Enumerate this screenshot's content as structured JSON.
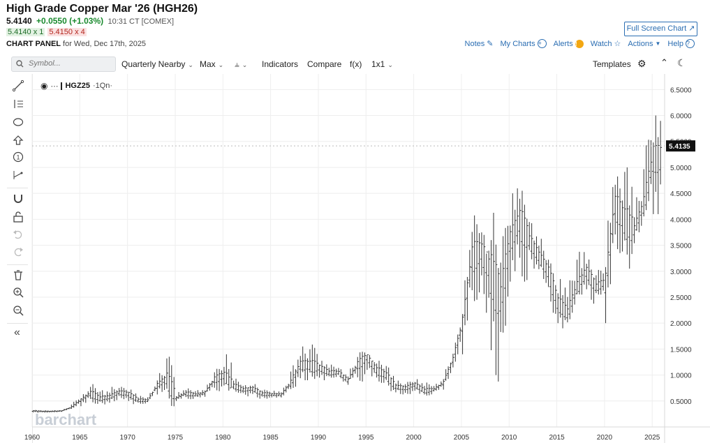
{
  "header": {
    "title": "High Grade Copper Mar '26 (HGH26)",
    "last": "5.4140",
    "change": "+0.0550 (+1.03%)",
    "time": "10:31 CT [COMEX]",
    "bid": "5.4140 x 1",
    "ask": "5.4150 x 4",
    "panel_label": "CHART PANEL",
    "panel_date": "for Wed, Dec 17th, 2025",
    "fullscreen_label": "Full Screen Chart",
    "links": {
      "notes": "Notes",
      "mycharts": "My Charts",
      "alerts": "Alerts",
      "watch": "Watch",
      "actions": "Actions",
      "help": "Help"
    }
  },
  "toolbar": {
    "search_placeholder": "Symbol...",
    "aggregation": "Quarterly Nearby",
    "period": "Max",
    "indicators": "Indicators",
    "compare": "Compare",
    "fx": "f(x)",
    "layout": "1x1",
    "templates": "Templates"
  },
  "legend": {
    "symbol": "HGZ25",
    "period": "1Qn"
  },
  "watermark": "barchart",
  "price_label": "5.4135",
  "colors": {
    "accent": "#2a6db2",
    "up": "#1a8a2e",
    "down": "#b3261e",
    "bars": "#333333"
  },
  "sidebar_icons": [
    "draw-line-icon",
    "trend-tools-icon",
    "shapes-icon",
    "arrow-up-icon",
    "annotation-icon",
    "measure-icon",
    "magnet-icon",
    "unlock-icon",
    "undo-icon",
    "redo-icon",
    "trash-icon",
    "zoom-in-icon",
    "zoom-out-icon",
    "collapse-icon"
  ],
  "chart_data": {
    "type": "ohlc",
    "symbol": "HGZ25",
    "y_axis_ticks": [
      "6.5000",
      "6.0000",
      "5.5000",
      "5.0000",
      "4.5000",
      "4.0000",
      "3.5000",
      "3.0000",
      "2.5000",
      "2.0000",
      "1.5000",
      "1.0000",
      "0.5000"
    ],
    "ylim": [
      0.0,
      6.8
    ],
    "x_axis_ticks": [
      "1960",
      "1965",
      "1970",
      "1975",
      "1980",
      "1985",
      "1990",
      "1995",
      "2000",
      "2005",
      "2010",
      "2015",
      "2020",
      "2025"
    ],
    "xlim": [
      1960.0,
      2026.3
    ],
    "last_price": 5.4135,
    "series": [
      {
        "x": [
          1960,
          1961,
          1962,
          1963,
          1964,
          1965,
          1966,
          1967,
          1968,
          1969,
          1970,
          1971,
          1972,
          1973,
          1974,
          1975,
          1976,
          1977,
          1978,
          1979,
          1980,
          1981,
          1982,
          1983,
          1984,
          1985,
          1986,
          1987,
          1988,
          1989,
          1990,
          1991,
          1992,
          1993,
          1994,
          1995,
          1996,
          1997,
          1998,
          1999,
          2000,
          2001,
          2002,
          2003,
          2004,
          2005,
          2006,
          2007,
          2008,
          2009,
          2010,
          2011,
          2012,
          2013,
          2014,
          2015,
          2016,
          2017,
          2018,
          2019,
          2020,
          2021,
          2022,
          2023,
          2024,
          2025
        ],
        "value": [
          0.31,
          0.3,
          0.3,
          0.31,
          0.38,
          0.52,
          0.65,
          0.55,
          0.58,
          0.67,
          0.64,
          0.52,
          0.51,
          0.8,
          0.95,
          0.56,
          0.65,
          0.62,
          0.66,
          0.92,
          1.0,
          0.8,
          0.72,
          0.74,
          0.64,
          0.63,
          0.62,
          0.85,
          1.2,
          1.2,
          1.15,
          1.05,
          1.05,
          0.9,
          1.2,
          1.35,
          1.1,
          1.0,
          0.78,
          0.75,
          0.82,
          0.7,
          0.72,
          0.85,
          1.3,
          2.0,
          3.3,
          3.4,
          3.0,
          2.5,
          3.6,
          4.0,
          3.6,
          3.3,
          3.0,
          2.4,
          2.2,
          2.7,
          3.0,
          2.7,
          2.8,
          4.3,
          4.0,
          3.8,
          4.3,
          5.2
        ],
        "high": [
          0.33,
          0.32,
          0.32,
          0.33,
          0.45,
          0.6,
          0.85,
          0.7,
          0.75,
          0.78,
          0.75,
          0.6,
          0.58,
          1.0,
          1.45,
          0.65,
          0.75,
          0.7,
          0.75,
          1.1,
          1.45,
          0.95,
          0.8,
          0.85,
          0.72,
          0.7,
          0.7,
          1.1,
          1.55,
          1.6,
          1.3,
          1.2,
          1.15,
          1.05,
          1.4,
          1.45,
          1.3,
          1.2,
          0.9,
          0.85,
          0.95,
          0.85,
          0.8,
          1.0,
          1.45,
          2.5,
          4.05,
          3.8,
          4.25,
          3.4,
          4.4,
          4.65,
          4.0,
          3.7,
          3.3,
          2.9,
          2.7,
          3.3,
          3.3,
          3.0,
          3.6,
          4.9,
          5.05,
          4.3,
          5.2,
          6.0
        ],
        "low": [
          0.28,
          0.28,
          0.28,
          0.29,
          0.33,
          0.4,
          0.5,
          0.42,
          0.45,
          0.55,
          0.5,
          0.45,
          0.45,
          0.6,
          0.6,
          0.5,
          0.55,
          0.55,
          0.57,
          0.65,
          0.8,
          0.7,
          0.58,
          0.62,
          0.55,
          0.57,
          0.55,
          0.6,
          0.9,
          0.95,
          0.95,
          0.95,
          0.95,
          0.8,
          0.8,
          1.1,
          0.9,
          0.8,
          0.65,
          0.6,
          0.7,
          0.6,
          0.65,
          0.7,
          1.05,
          1.4,
          2.4,
          2.4,
          1.25,
          1.4,
          2.8,
          3.0,
          3.2,
          3.0,
          2.5,
          2.0,
          1.95,
          2.4,
          2.6,
          2.5,
          2.0,
          3.5,
          3.15,
          3.5,
          3.9,
          4.1
        ]
      }
    ]
  }
}
